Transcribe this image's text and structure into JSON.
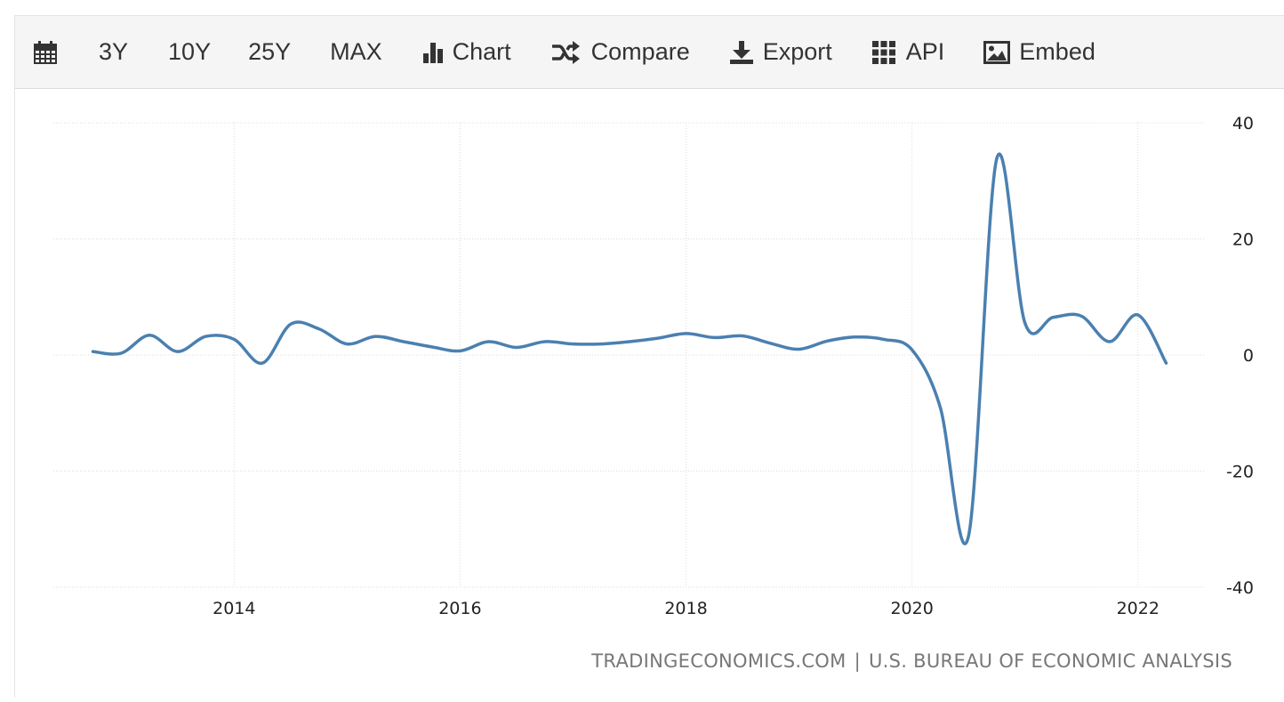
{
  "toolbar": {
    "items": [
      {
        "name": "calendar",
        "label": "",
        "icon": "calendar-icon"
      },
      {
        "name": "range-3y",
        "label": "3Y"
      },
      {
        "name": "range-10y",
        "label": "10Y"
      },
      {
        "name": "range-25y",
        "label": "25Y"
      },
      {
        "name": "range-max",
        "label": "MAX"
      },
      {
        "name": "chart",
        "label": "Chart",
        "icon": "bar-chart-icon"
      },
      {
        "name": "compare",
        "label": "Compare",
        "icon": "shuffle-icon"
      },
      {
        "name": "export",
        "label": "Export",
        "icon": "download-icon"
      },
      {
        "name": "api",
        "label": "API",
        "icon": "grid-icon"
      },
      {
        "name": "embed",
        "label": "Embed",
        "icon": "image-icon"
      }
    ]
  },
  "source": {
    "left": "TRADINGECONOMICS.COM",
    "separator": "|",
    "right": "U.S. BUREAU OF ECONOMIC ANALYSIS"
  },
  "colors": {
    "line": "#4a80b0",
    "grid": "#dddddd",
    "toolbar_bg": "#f5f5f5",
    "text": "#333333"
  },
  "chart_data": {
    "type": "line",
    "title": "",
    "xlabel": "",
    "ylabel": "",
    "ylim": [
      -40,
      40
    ],
    "yticks": [
      40,
      20,
      0,
      -20,
      -40
    ],
    "xticks": [
      2014,
      2016,
      2018,
      2020,
      2022
    ],
    "xlim": [
      2012.4,
      2022.6
    ],
    "grid": true,
    "legend": "none",
    "series": [
      {
        "x": [
          2012.75,
          2013.0,
          2013.25,
          2013.5,
          2013.75,
          2014.0,
          2014.25,
          2014.5,
          2014.75,
          2015.0,
          2015.25,
          2015.5,
          2015.75,
          2016.0,
          2016.25,
          2016.5,
          2016.75,
          2017.0,
          2017.25,
          2017.5,
          2017.75,
          2018.0,
          2018.25,
          2018.5,
          2018.75,
          2019.0,
          2019.25,
          2019.5,
          2019.75,
          2020.0,
          2020.25,
          2020.5,
          2020.75,
          2021.0,
          2021.25,
          2021.5,
          2021.75,
          2022.0,
          2022.25
        ],
        "values": [
          0.6,
          0.3,
          3.4,
          0.6,
          3.2,
          2.7,
          -1.4,
          5.3,
          4.5,
          1.9,
          3.2,
          2.3,
          1.4,
          0.7,
          2.3,
          1.3,
          2.3,
          1.9,
          1.9,
          2.3,
          2.9,
          3.7,
          3.0,
          3.3,
          2.0,
          1.0,
          2.4,
          3.1,
          2.7,
          0.9,
          -9.0,
          -31.2,
          33.8,
          5.5,
          6.5,
          6.7,
          2.3,
          6.9,
          -1.4
        ]
      }
    ]
  }
}
